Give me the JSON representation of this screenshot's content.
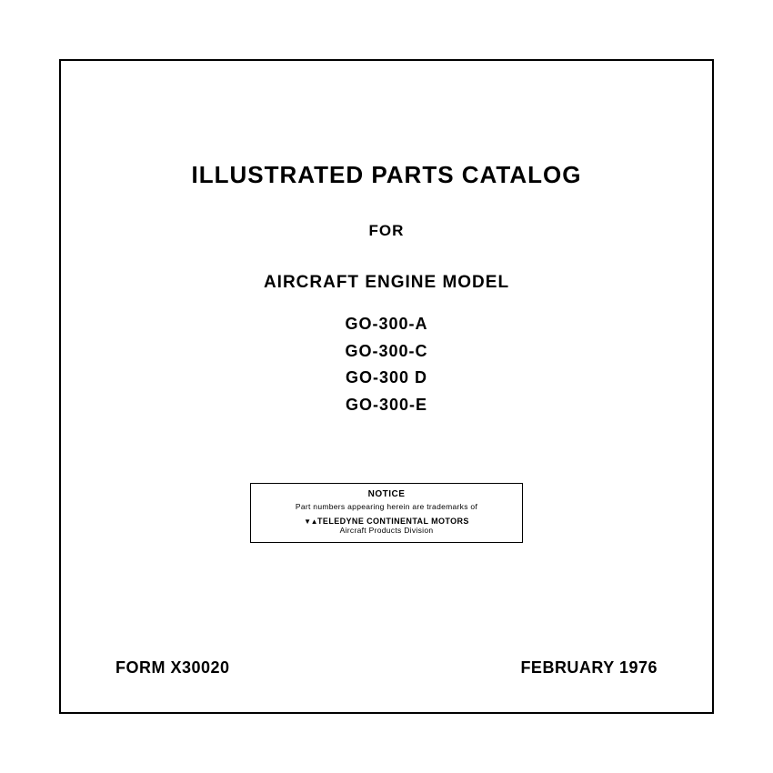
{
  "title": "ILLUSTRATED PARTS CATALOG",
  "for_label": "FOR",
  "subtitle": "AIRCRAFT ENGINE MODEL",
  "models": [
    "GO-300-A",
    "GO-300-C",
    "GO-300 D",
    "GO-300-E"
  ],
  "notice": {
    "heading": "NOTICE",
    "text": "Part numbers appearing herein are trademarks of",
    "company": "TELEDYNE CONTINENTAL MOTORS",
    "division": "Aircraft Products Division"
  },
  "footer": {
    "form": "FORM X30020",
    "date": "FEBRUARY 1976"
  },
  "colors": {
    "text": "#000000",
    "background": "#ffffff",
    "border": "#000000"
  }
}
